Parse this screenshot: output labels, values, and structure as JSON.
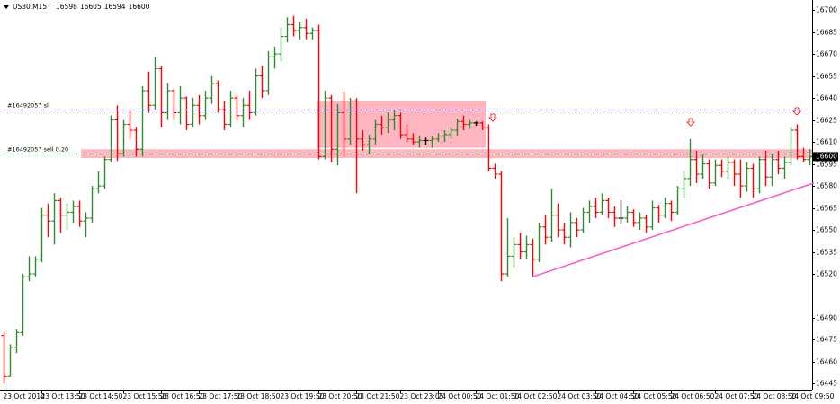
{
  "chart_data": {
    "type": "ohlc",
    "symbol": "US30.M15",
    "up_color": "#2e8b2e",
    "down_color": "#ff0000",
    "doji_color": "#000000",
    "ylim": [
      16441,
      16705
    ],
    "yticks": [
      16700,
      16685,
      16670,
      16655,
      16640,
      16625,
      16610,
      16595,
      16580,
      16565,
      16550,
      16535,
      16520,
      16490,
      16475,
      16460,
      16445
    ],
    "current_price": 16600,
    "categories": [
      "23 Oct 2014",
      null,
      null,
      null,
      null,
      null,
      "23 Oct 13:50",
      null,
      null,
      null,
      null,
      null,
      "23 Oct 14:50",
      null,
      null,
      null,
      null,
      null,
      null,
      "23 Oct 15:50",
      null,
      null,
      null,
      null,
      null,
      "23 Oct 16:50",
      null,
      null,
      null,
      null,
      null,
      "23 Oct 17:50",
      null,
      null,
      null,
      null,
      null,
      "23 Oct 18:50",
      null,
      null,
      null,
      null,
      null,
      null,
      "23 Oct 19:50",
      null,
      null,
      null,
      null,
      null,
      "23 Oct 20:50",
      null,
      null,
      null,
      null,
      null,
      "23 Oct 21:50",
      null,
      null,
      null,
      null,
      null,
      null,
      "23 Oct 23:05",
      null,
      null,
      null,
      null,
      null,
      "24 Oct 00:50",
      null,
      null,
      null,
      null,
      null,
      "24 Oct 01:50",
      null,
      null,
      null,
      null,
      null,
      "24 Oct 02:50",
      null,
      null,
      null,
      null,
      null,
      null,
      "24 Oct 03:50",
      null,
      null,
      null,
      null,
      null,
      "24 Oct 04:50",
      null,
      null,
      null,
      null,
      null,
      "24 Oct 05:50",
      null,
      null,
      null,
      null,
      null,
      "24 Oct 06:50",
      null,
      null,
      null,
      null,
      null,
      null,
      "24 Oct 07:50",
      null,
      null,
      null,
      null,
      null,
      "24 Oct 08:50",
      null,
      null,
      null,
      null,
      null,
      "24 Oct 09:50",
      null,
      null,
      null
    ],
    "values": [
      [
        16478,
        16480,
        16445,
        16450
      ],
      [
        16450,
        16472,
        16450,
        16470
      ],
      [
        16470,
        16482,
        16466,
        16480
      ],
      [
        16480,
        16520,
        16478,
        16518
      ],
      [
        16518,
        16532,
        16515,
        16520
      ],
      [
        16520,
        16532,
        16518,
        16530
      ],
      [
        16530,
        16565,
        16528,
        16560
      ],
      [
        16560,
        16568,
        16545,
        16556
      ],
      [
        16556,
        16575,
        16540,
        16570
      ],
      [
        16570,
        16572,
        16548,
        16560
      ],
      [
        16560,
        16568,
        16550,
        16562
      ],
      [
        16562,
        16570,
        16555,
        16566
      ],
      [
        16566,
        16570,
        16552,
        16556
      ],
      [
        16556,
        16562,
        16545,
        16558
      ],
      [
        16558,
        16580,
        16555,
        16578
      ],
      [
        16578,
        16590,
        16575,
        16580
      ],
      [
        16580,
        16600,
        16578,
        16598
      ],
      [
        16598,
        16628,
        16596,
        16625
      ],
      [
        16625,
        16635,
        16597,
        16602
      ],
      [
        16602,
        16625,
        16600,
        16622
      ],
      [
        16622,
        16632,
        16612,
        16618
      ],
      [
        16618,
        16620,
        16600,
        16605
      ],
      [
        16605,
        16648,
        16600,
        16645
      ],
      [
        16645,
        16658,
        16630,
        16635
      ],
      [
        16635,
        16668,
        16632,
        16660
      ],
      [
        16660,
        16662,
        16620,
        16630
      ],
      [
        16630,
        16650,
        16625,
        16645
      ],
      [
        16645,
        16646,
        16625,
        16630
      ],
      [
        16630,
        16648,
        16622,
        16640
      ],
      [
        16640,
        16641,
        16618,
        16622
      ],
      [
        16622,
        16640,
        16620,
        16635
      ],
      [
        16635,
        16642,
        16622,
        16628
      ],
      [
        16628,
        16645,
        16625,
        16640
      ],
      [
        16640,
        16655,
        16636,
        16650
      ],
      [
        16650,
        16652,
        16630,
        16632
      ],
      [
        16632,
        16638,
        16618,
        16622
      ],
      [
        16622,
        16645,
        16620,
        16640
      ],
      [
        16640,
        16642,
        16625,
        16628
      ],
      [
        16628,
        16640,
        16620,
        16635
      ],
      [
        16635,
        16645,
        16625,
        16630
      ],
      [
        16630,
        16660,
        16628,
        16655
      ],
      [
        16655,
        16662,
        16640,
        16645
      ],
      [
        16645,
        16672,
        16642,
        16668
      ],
      [
        16668,
        16675,
        16660,
        16670
      ],
      [
        16670,
        16688,
        16665,
        16682
      ],
      [
        16682,
        16695,
        16678,
        16690
      ],
      [
        16690,
        16696,
        16682,
        16686
      ],
      [
        16686,
        16692,
        16680,
        16688
      ],
      [
        16688,
        16694,
        16680,
        16684
      ],
      [
        16684,
        16688,
        16680,
        16686
      ],
      [
        16686,
        16690,
        16598,
        16600
      ],
      [
        16600,
        16645,
        16598,
        16640
      ],
      [
        16640,
        16642,
        16596,
        16605
      ],
      [
        16605,
        16636,
        16594,
        16630
      ],
      [
        16630,
        16644,
        16600,
        16612
      ],
      [
        16612,
        16640,
        16608,
        16638
      ],
      [
        16638,
        16640,
        16575,
        16612
      ],
      [
        16612,
        16618,
        16604,
        16608
      ],
      [
        16608,
        16615,
        16602,
        16612
      ],
      [
        16612,
        16625,
        16608,
        16622
      ],
      [
        16622,
        16628,
        16615,
        16620
      ],
      [
        16620,
        16630,
        16616,
        16625
      ],
      [
        16625,
        16632,
        16618,
        16628
      ],
      [
        16628,
        16630,
        16612,
        16615
      ],
      [
        16615,
        16622,
        16610,
        16612
      ],
      [
        16612,
        16616,
        16608,
        16610
      ],
      [
        16610,
        16614,
        16606,
        16611
      ],
      [
        16611,
        16613,
        16608,
        16611
      ],
      [
        16611,
        16614,
        16606,
        16612
      ],
      [
        16612,
        16616,
        16610,
        16614
      ],
      [
        16614,
        16618,
        16610,
        16615
      ],
      [
        16615,
        16620,
        16612,
        16618
      ],
      [
        16618,
        16626,
        16614,
        16624
      ],
      [
        16624,
        16628,
        16618,
        16622
      ],
      [
        16622,
        16625,
        16619,
        16623
      ],
      [
        16623,
        16624,
        16621,
        16623
      ],
      [
        16623,
        16624,
        16618,
        16620
      ],
      [
        16620,
        16622,
        16590,
        16592
      ],
      [
        16592,
        16595,
        16585,
        16588
      ],
      [
        16588,
        16590,
        16515,
        16520
      ],
      [
        16520,
        16558,
        16518,
        16532
      ],
      [
        16532,
        16545,
        16525,
        16540
      ],
      [
        16540,
        16548,
        16530,
        16535
      ],
      [
        16535,
        16546,
        16530,
        16540
      ],
      [
        16540,
        16544,
        16518,
        16530
      ],
      [
        16530,
        16555,
        16528,
        16552
      ],
      [
        16552,
        16560,
        16540,
        16545
      ],
      [
        16545,
        16578,
        16542,
        16560
      ],
      [
        16560,
        16568,
        16545,
        16550
      ],
      [
        16550,
        16555,
        16540,
        16545
      ],
      [
        16545,
        16562,
        16538,
        16555
      ],
      [
        16555,
        16558,
        16545,
        16550
      ],
      [
        16550,
        16565,
        16548,
        16562
      ],
      [
        16562,
        16570,
        16555,
        16566
      ],
      [
        16566,
        16572,
        16558,
        16562
      ],
      [
        16562,
        16575,
        16560,
        16570
      ],
      [
        16570,
        16572,
        16558,
        16562
      ],
      [
        16562,
        16566,
        16552,
        16558
      ],
      [
        16558,
        16570,
        16554,
        16558
      ],
      [
        16558,
        16566,
        16555,
        16562
      ],
      [
        16562,
        16564,
        16552,
        16555
      ],
      [
        16555,
        16562,
        16550,
        16558
      ],
      [
        16558,
        16560,
        16548,
        16552
      ],
      [
        16552,
        16570,
        16550,
        16565
      ],
      [
        16565,
        16567,
        16555,
        16560
      ],
      [
        16560,
        16572,
        16558,
        16568
      ],
      [
        16568,
        16570,
        16556,
        16562
      ],
      [
        16562,
        16580,
        16560,
        16578
      ],
      [
        16578,
        16590,
        16572,
        16585
      ],
      [
        16585,
        16612,
        16580,
        16598
      ],
      [
        16598,
        16604,
        16582,
        16588
      ],
      [
        16588,
        16602,
        16585,
        16595
      ],
      [
        16595,
        16598,
        16578,
        16582
      ],
      [
        16582,
        16598,
        16580,
        16594
      ],
      [
        16594,
        16598,
        16586,
        16590
      ],
      [
        16590,
        16600,
        16585,
        16596
      ],
      [
        16596,
        16598,
        16580,
        16588
      ],
      [
        16588,
        16598,
        16572,
        16580
      ],
      [
        16580,
        16596,
        16576,
        16592
      ],
      [
        16592,
        16595,
        16572,
        16578
      ],
      [
        16578,
        16600,
        16575,
        16598
      ],
      [
        16598,
        16604,
        16580,
        16586
      ],
      [
        16586,
        16602,
        16580,
        16598
      ],
      [
        16598,
        16604,
        16588,
        16592
      ],
      [
        16592,
        16600,
        16585,
        16596
      ],
      [
        16596,
        16620,
        16594,
        16618
      ],
      [
        16618,
        16622,
        16598,
        16600
      ],
      [
        16600,
        16606,
        16596,
        16598
      ],
      [
        16598,
        16605,
        16594,
        16600
      ]
    ],
    "levels": [
      {
        "label": "#16492057 sl",
        "value": 16632,
        "color": "#3b3bd6"
      },
      {
        "label": "#16492057 sell 0.20",
        "value": 16602,
        "color": "#2e8b2e"
      }
    ],
    "zones": [
      {
        "low": 16606,
        "high": 16638,
        "color": "#ffb6c1"
      },
      {
        "low": 16599,
        "high": 16605,
        "color": "#ffb6c1"
      }
    ],
    "trendline": {
      "start": 16518,
      "end": 16582,
      "color": "#ff55c8"
    }
  }
}
